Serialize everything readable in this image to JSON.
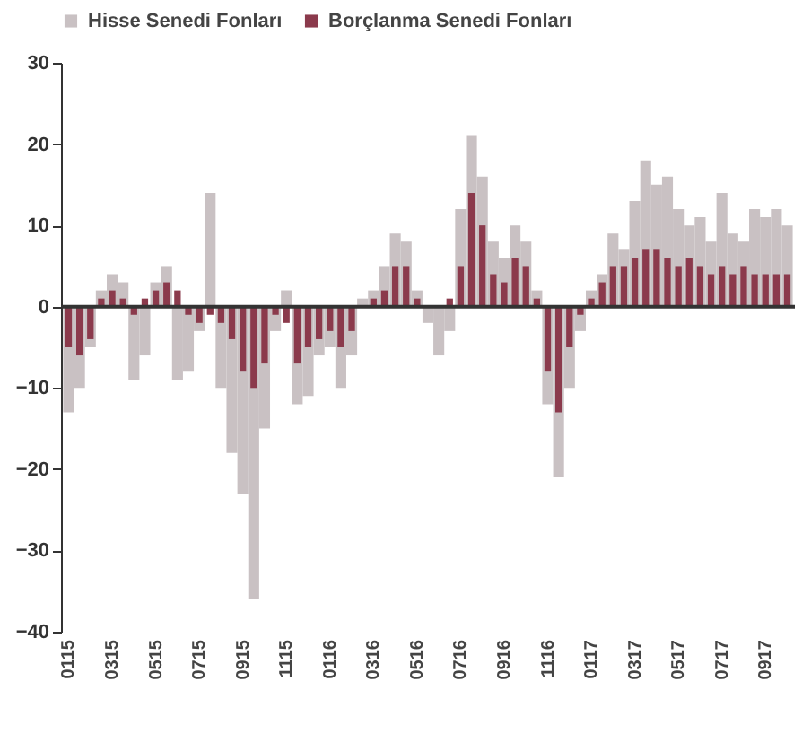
{
  "chart_data": {
    "type": "bar",
    "categories": [
      "0115",
      null,
      null,
      null,
      "0315",
      null,
      null,
      null,
      "0515",
      null,
      null,
      null,
      "0715",
      null,
      null,
      null,
      "0915",
      null,
      null,
      null,
      "1115",
      null,
      null,
      null,
      "0116",
      null,
      null,
      null,
      "0316",
      null,
      null,
      null,
      "0516",
      null,
      null,
      null,
      "0716",
      null,
      null,
      null,
      "0916",
      null,
      null,
      null,
      "1116",
      null,
      null,
      null,
      "0117",
      null,
      null,
      null,
      "0317",
      null,
      null,
      null,
      "0517",
      null,
      null,
      null,
      "0717",
      null,
      null,
      null,
      "0917",
      null,
      null
    ],
    "series": [
      {
        "name": "Hisse Senedi Fonları",
        "color": "#c9c1c3",
        "values": [
          -13,
          -10,
          -5,
          2,
          4,
          3,
          -9,
          -6,
          3,
          5,
          -9,
          -8,
          -3,
          14,
          -10,
          -18,
          -23,
          -36,
          -15,
          -3,
          2,
          -12,
          -11,
          -6,
          -5,
          -10,
          -6,
          1,
          2,
          5,
          9,
          8,
          2,
          -2,
          -6,
          -3,
          12,
          21,
          16,
          8,
          6,
          10,
          8,
          2,
          -12,
          -21,
          -10,
          -3,
          2,
          4,
          9,
          7,
          13,
          18,
          15,
          16,
          12,
          10,
          11,
          8,
          14,
          9,
          8,
          12,
          11,
          12,
          10
        ]
      },
      {
        "name": "Borçlanma Senedi Fonları",
        "color": "#8b3a4c",
        "values": [
          -5,
          -6,
          -4,
          1,
          2,
          1,
          -1,
          1,
          2,
          3,
          2,
          -1,
          -2,
          -1,
          -2,
          -4,
          -8,
          -10,
          -7,
          -1,
          -2,
          -7,
          -5,
          -4,
          -3,
          -5,
          -3,
          0,
          1,
          2,
          5,
          5,
          1,
          0,
          0,
          1,
          5,
          14,
          10,
          4,
          3,
          6,
          5,
          1,
          -8,
          -13,
          -5,
          -1,
          1,
          3,
          5,
          5,
          6,
          7,
          7,
          6,
          5,
          6,
          5,
          4,
          5,
          4,
          5,
          4,
          4,
          4,
          4
        ]
      }
    ],
    "ylim": [
      -40,
      30
    ],
    "yticks": [
      -40,
      -30,
      -20,
      -10,
      0,
      10,
      20,
      30
    ],
    "grid": false,
    "legend": "top",
    "ref_lines": [
      {
        "axis": "y",
        "value": 0,
        "color": "#333333"
      }
    ]
  }
}
